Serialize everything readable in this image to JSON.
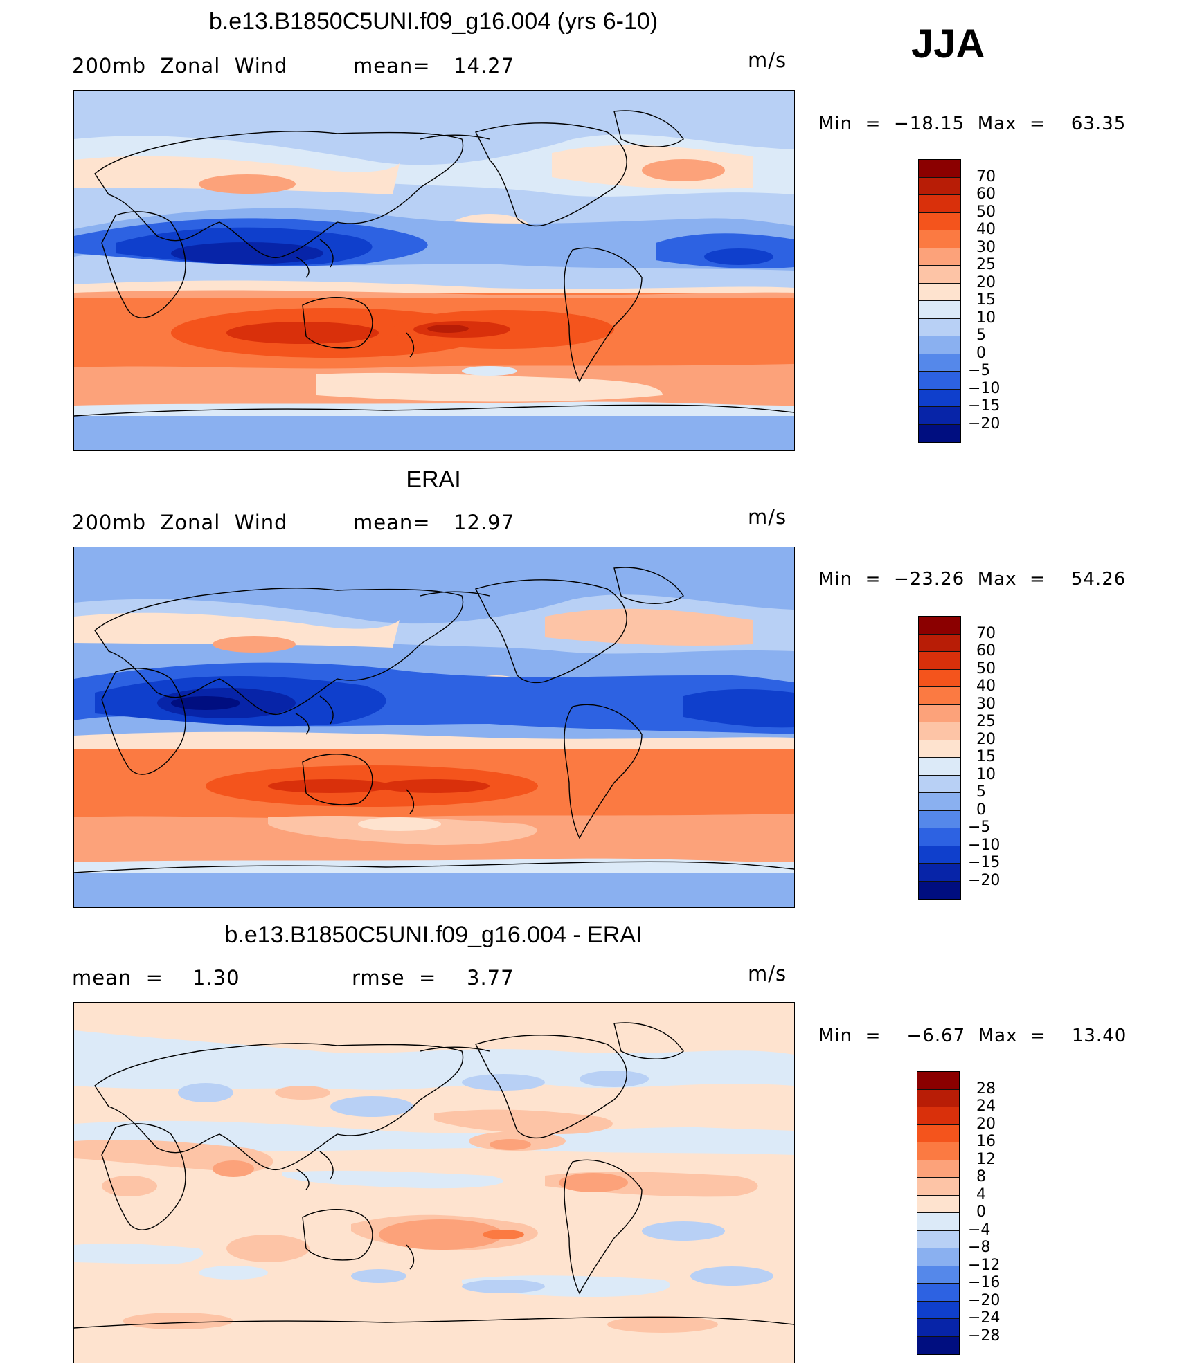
{
  "season": "JJA",
  "units": "m/s",
  "colorbar_labels_wind": [
    "70",
    "60",
    "50",
    "40",
    "30",
    "25",
    "20",
    "15",
    "10",
    "5",
    "0",
    "−5",
    "−10",
    "−15",
    "−20"
  ],
  "colorbar_labels_diff": [
    "28",
    "24",
    "20",
    "16",
    "12",
    "8",
    "4",
    "0",
    "−4",
    "−8",
    "−12",
    "−16",
    "−20",
    "−24",
    "−28"
  ],
  "colorbar_colors_wind": [
    "#8b0000",
    "#b81d06",
    "#d9300b",
    "#f4541c",
    "#fb7a42",
    "#fca27a",
    "#fdc4a6",
    "#fee3cf",
    "#dceaf8",
    "#b8d0f5",
    "#8ab0f0",
    "#5588ea",
    "#2d62e2",
    "#0f3fcc",
    "#0724a8",
    "#000e80"
  ],
  "colorbar_colors_diff": [
    "#8b0000",
    "#b81d06",
    "#d9300b",
    "#f4541c",
    "#fb7a42",
    "#fca27a",
    "#fdc4a6",
    "#fee3cf",
    "#dceaf8",
    "#b8d0f5",
    "#8ab0f0",
    "#5588ea",
    "#2d62e2",
    "#0f3fcc",
    "#0724a8",
    "#000e80"
  ],
  "panels": [
    {
      "title": "b.e13.B1850C5UNI.f09_g16.004 (yrs 6-10)",
      "left_label": "200mb  Zonal  Wind",
      "stat1_label": "mean=",
      "stat1_value": "14.27",
      "stat2_label": "",
      "stat2_value": "",
      "units": "m/s",
      "minmax": "Min  =  −18.15  Max  =    63.35",
      "scale": "wind"
    },
    {
      "title": "ERAI",
      "left_label": "200mb  Zonal  Wind",
      "stat1_label": "mean=",
      "stat1_value": "12.97",
      "stat2_label": "",
      "stat2_value": "",
      "units": "m/s",
      "minmax": "Min  =  −23.26  Max  =    54.26",
      "scale": "wind"
    },
    {
      "title": "b.e13.B1850C5UNI.f09_g16.004 - ERAI",
      "left_label": "mean  =",
      "stat1_label": "1.30",
      "stat1_value": "",
      "stat2_label": "rmse  =",
      "stat2_value": "3.77",
      "units": "m/s",
      "minmax": "Min  =    −6.67  Max  =    13.40",
      "scale": "diff"
    }
  ]
}
